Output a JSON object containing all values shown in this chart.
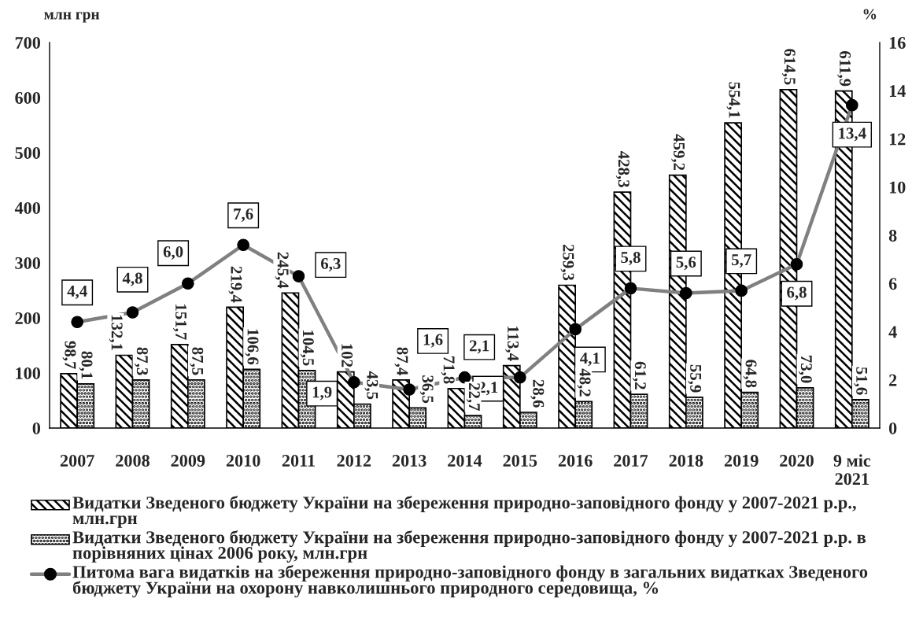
{
  "chart_data": {
    "type": "bar",
    "ylabel": "млн грн",
    "y2label": "%",
    "categories": [
      "2007",
      "2008",
      "2009",
      "2010",
      "2011",
      "2012",
      "2013",
      "2014",
      "2015",
      "2016",
      "2017",
      "2018",
      "2019",
      "2020",
      "9 міс\n2021"
    ],
    "series": [
      {
        "name": "Видатки Зведеного бюджету України на збереження природно-заповідного фонду у 2007-2021 р.р., млн.грн",
        "color": "#000000",
        "values": [
          98.7,
          132.1,
          151.7,
          219.4,
          245.4,
          102,
          87.4,
          71.8,
          113.4,
          259.3,
          428.3,
          459.2,
          554.1,
          614.5,
          611.9
        ],
        "value_labels": [
          "98,7",
          "132,1",
          "151,7",
          "219,4",
          "245,4",
          "102",
          "87,4",
          "71,8",
          "113,4",
          "259,3",
          "428,3",
          "459,2",
          "554,1",
          "614,5",
          "611,9"
        ]
      },
      {
        "name": "Видатки Зведеного бюджету України на збереження природно-заповідного фонду у 2007-2021 р.р. в порівняних цінах 2006 року, млн.грн",
        "color": "#000000",
        "values": [
          80.1,
          87.3,
          87.5,
          106.6,
          104.5,
          43.5,
          36.5,
          22.7,
          28.6,
          48.2,
          61.2,
          55.9,
          64.8,
          73.0,
          51.6
        ],
        "value_labels": [
          "80,1",
          "87,3",
          "87,5",
          "106,6",
          "104,5",
          "43,5",
          "36,5",
          "22,7",
          "28,6",
          "48,2",
          "61,2",
          "55,9",
          "64,8",
          "73,0",
          "51,6"
        ]
      },
      {
        "name": "Питома вага видатків на збереження природно-заповідного фонду в загальних видатках Зведеного бюджету України на охорону навколишнього природного середовища, %",
        "type": "line",
        "axis": "y2",
        "color": "#808080",
        "marker": "circle",
        "line_style": "solid",
        "values": [
          4.4,
          4.8,
          6.0,
          7.6,
          6.3,
          1.9,
          1.6,
          2.1,
          2.1,
          4.1,
          5.8,
          5.6,
          5.7,
          6.8,
          13.4
        ],
        "value_labels": [
          "4,4",
          "4,8",
          "6,0",
          "7,6",
          "6,3",
          "1,9",
          "1,6",
          "2,1",
          "2,1",
          "4,1",
          "5,8",
          "5,6",
          "5,7",
          "6,8",
          "13,4"
        ]
      }
    ],
    "ylim": [
      0,
      700
    ],
    "yticks": [
      0,
      100,
      200,
      300,
      400,
      500,
      600,
      700
    ],
    "y2lim": [
      0,
      16
    ],
    "y2ticks": [
      0,
      2,
      4,
      6,
      8,
      10,
      12,
      14,
      16
    ],
    "grid": false,
    "legend": "bottom"
  }
}
